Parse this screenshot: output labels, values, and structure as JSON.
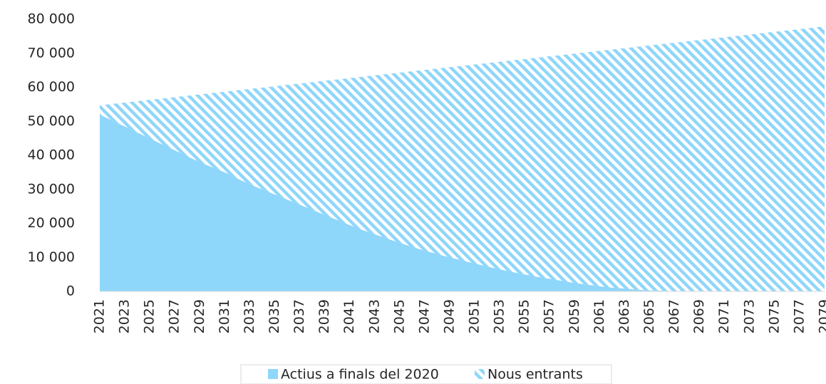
{
  "chart_data": {
    "type": "stacked_area",
    "categories": [
      "2021",
      null,
      "2023",
      null,
      "2025",
      null,
      "2027",
      null,
      "2029",
      null,
      "2031",
      null,
      "2033",
      null,
      "2035",
      null,
      "2037",
      null,
      "2039",
      null,
      "2041",
      null,
      "2043",
      null,
      "2045",
      null,
      "2047",
      null,
      "2049",
      null,
      "2051",
      null,
      "2053",
      null,
      "2055",
      null,
      "2057",
      null,
      "2059",
      null,
      "2061",
      null,
      "2063",
      null,
      "2065",
      null,
      "2067",
      null,
      "2069",
      null,
      "2071",
      null,
      "2073",
      null,
      "2075",
      null,
      "2077",
      null,
      "2079"
    ],
    "series": [
      {
        "name": "Actius a finals del 2020",
        "color": "#8fd6fb",
        "fill": "solid",
        "values": [
          52000,
          50200,
          48500,
          46700,
          45000,
          43200,
          41500,
          39700,
          38000,
          36500,
          35000,
          33200,
          31500,
          30000,
          28500,
          27000,
          25500,
          24000,
          22500,
          21000,
          19500,
          18100,
          16800,
          15500,
          14300,
          13100,
          12000,
          11000,
          10000,
          9100,
          8200,
          7300,
          6500,
          5700,
          5000,
          4300,
          3700,
          3100,
          2500,
          2000,
          1500,
          1100,
          800,
          500,
          300,
          200,
          100,
          50,
          0,
          0,
          0,
          0,
          0,
          0,
          0,
          0,
          0,
          0,
          0
        ]
      },
      {
        "name": "Nous entrants",
        "color": "#8fd6fb",
        "fill": "hatch",
        "values": [
          2700,
          4900,
          7000,
          9200,
          11300,
          13500,
          15600,
          17800,
          19900,
          21800,
          23700,
          25900,
          28000,
          29900,
          31800,
          33700,
          35600,
          37500,
          39400,
          41300,
          43200,
          45000,
          46700,
          48400,
          50000,
          51600,
          53100,
          54500,
          55900,
          57200,
          58500,
          59800,
          61000,
          62200,
          63300,
          64400,
          65400,
          66400,
          67400,
          68300,
          69200,
          70000,
          70700,
          71400,
          72000,
          72500,
          73000,
          73450,
          73900,
          74300,
          74700,
          75100,
          75500,
          75900,
          76300,
          76700,
          77100,
          77500,
          77900
        ]
      }
    ],
    "ylim": [
      0,
      80000
    ],
    "yticks": [
      0,
      {
        "value": 10000,
        "label": "10 000"
      },
      {
        "value": 20000,
        "label": "20 000"
      },
      {
        "value": 30000,
        "label": "30 000"
      },
      {
        "value": 40000,
        "label": "40 000"
      },
      {
        "value": 50000,
        "label": "50 000"
      },
      {
        "value": 60000,
        "label": "60 000"
      },
      {
        "value": 70000,
        "label": "70 000"
      },
      {
        "value": 80000,
        "label": "80 000"
      }
    ],
    "grid": false,
    "legend": "bottom"
  }
}
